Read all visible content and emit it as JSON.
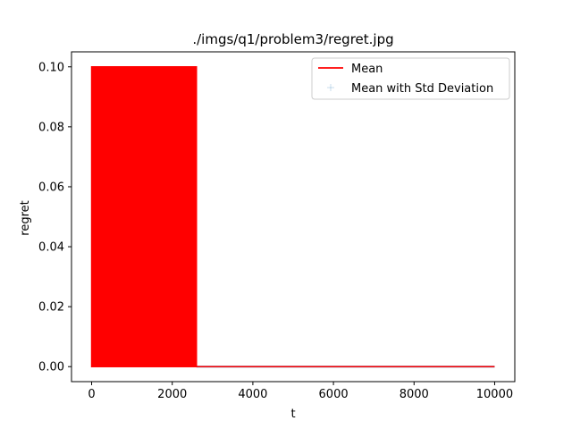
{
  "chart_data": {
    "type": "line",
    "title": "./imgs/q1/problem3/regret.jpg",
    "xlabel": "t",
    "ylabel": "regret",
    "xlim": [
      -500,
      10500
    ],
    "ylim": [
      -0.005,
      0.105
    ],
    "xticks": [
      0,
      2000,
      4000,
      6000,
      8000,
      10000
    ],
    "xtick_labels": [
      "0",
      "2000",
      "4000",
      "6000",
      "8000",
      "10000"
    ],
    "yticks": [
      0.0,
      0.02,
      0.04,
      0.06,
      0.08,
      0.1
    ],
    "ytick_labels": [
      "0.00",
      "0.02",
      "0.04",
      "0.06",
      "0.08",
      "0.10"
    ],
    "grid": false,
    "legend_position": "top-right",
    "series": [
      {
        "name": "Mean",
        "color": "#ff0000",
        "style": "oscillating between 0 and 0.1 until t≈2600, then 0",
        "segments": [
          {
            "x_start": 0,
            "x_end": 2600,
            "y_low": 0.0,
            "y_high": 0.1
          },
          {
            "x_start": 2600,
            "x_end": 10000,
            "y_low": 0.0,
            "y_high": 0.0
          }
        ]
      },
      {
        "name": "Mean with Std Deviation",
        "color": "#1f77b4",
        "style": "error-bar markers around the mean",
        "segments": [
          {
            "x_start": 2600,
            "x_end": 10000,
            "y_low": 0.0,
            "y_high": 0.0
          }
        ]
      }
    ]
  }
}
